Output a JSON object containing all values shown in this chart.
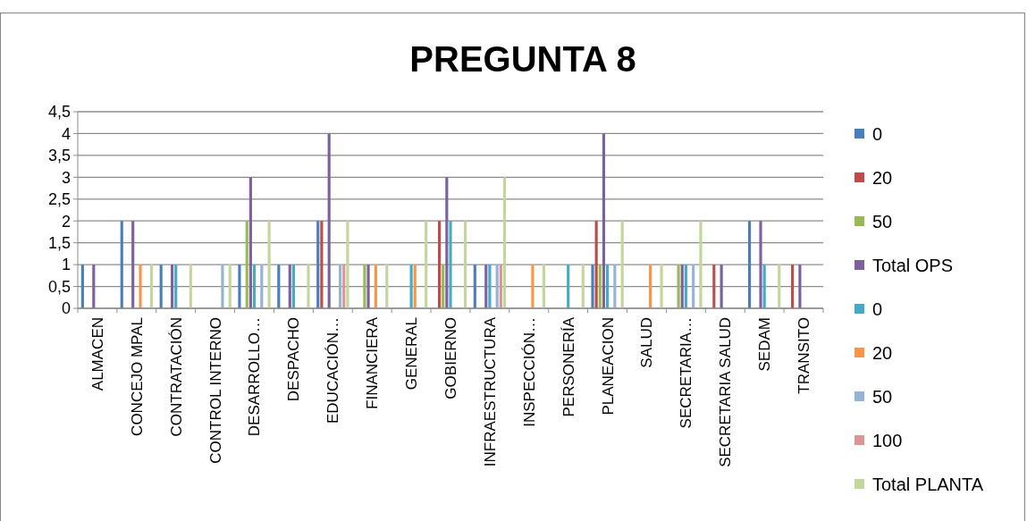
{
  "chart_data": {
    "type": "bar",
    "title": "PREGUNTA 8",
    "categories": [
      "ALMACEN",
      "CONCEJO MPAL",
      "CONTRATACIÓN",
      "CONTROL INTERNO",
      "DESARROLLO…",
      "DESPACHO",
      "EDUCACIÓN…",
      "FINANCIERA",
      "GENERAL",
      "GOBIERNO",
      "INFRAESTRUCTURA",
      "INSPECCIÓN…",
      "PERSONERÍA",
      "PLANEACION",
      "SALUD",
      "SECRETARIA…",
      "SECRETARIA SALUD",
      "SEDAM",
      "TRANSITO"
    ],
    "series": [
      {
        "name": "0",
        "color": "#4a7ebb",
        "values": [
          1,
          2,
          1,
          null,
          1,
          1,
          2,
          null,
          null,
          null,
          1,
          null,
          null,
          1,
          null,
          null,
          null,
          2,
          null
        ]
      },
      {
        "name": "20",
        "color": "#be4b48",
        "values": [
          null,
          null,
          null,
          null,
          null,
          null,
          2,
          null,
          null,
          2,
          null,
          null,
          null,
          2,
          null,
          null,
          1,
          null,
          1
        ]
      },
      {
        "name": "50",
        "color": "#98b954",
        "values": [
          null,
          null,
          null,
          null,
          2,
          null,
          null,
          1,
          null,
          1,
          null,
          null,
          null,
          1,
          null,
          1,
          null,
          null,
          null
        ]
      },
      {
        "name": "Total OPS",
        "color": "#7d60a0",
        "values": [
          1,
          2,
          1,
          null,
          3,
          1,
          4,
          1,
          null,
          3,
          1,
          null,
          null,
          4,
          null,
          1,
          1,
          2,
          1
        ]
      },
      {
        "name": "0",
        "color": "#46aac5",
        "values": [
          null,
          null,
          1,
          null,
          1,
          1,
          null,
          null,
          1,
          2,
          1,
          null,
          1,
          1,
          null,
          1,
          null,
          1,
          null
        ]
      },
      {
        "name": "20",
        "color": "#f79646",
        "values": [
          null,
          1,
          null,
          null,
          null,
          null,
          null,
          1,
          1,
          null,
          null,
          1,
          null,
          null,
          1,
          null,
          null,
          null,
          null
        ]
      },
      {
        "name": "50",
        "color": "#95b3d7",
        "values": [
          null,
          null,
          null,
          1,
          1,
          null,
          1,
          null,
          null,
          null,
          1,
          null,
          null,
          1,
          null,
          1,
          null,
          null,
          null
        ]
      },
      {
        "name": "100",
        "color": "#d99694",
        "values": [
          null,
          null,
          null,
          null,
          null,
          null,
          1,
          null,
          null,
          null,
          1,
          null,
          null,
          null,
          null,
          null,
          null,
          null,
          null
        ]
      },
      {
        "name": "Total PLANTA",
        "color": "#c3d69b",
        "values": [
          null,
          1,
          1,
          1,
          2,
          1,
          2,
          1,
          2,
          2,
          3,
          1,
          1,
          2,
          1,
          2,
          null,
          1,
          null
        ]
      }
    ],
    "ylim": [
      0,
      4.5
    ],
    "yticks": [
      0,
      {
        "value": 0.5,
        "label": "0,5"
      },
      1,
      {
        "value": 1.5,
        "label": "1,5"
      },
      2,
      {
        "value": 2.5,
        "label": "2,5"
      },
      3,
      {
        "value": 3.5,
        "label": "3,5"
      },
      4,
      {
        "value": 4.5,
        "label": "4,5"
      }
    ],
    "grid": "y",
    "legend": "right"
  }
}
